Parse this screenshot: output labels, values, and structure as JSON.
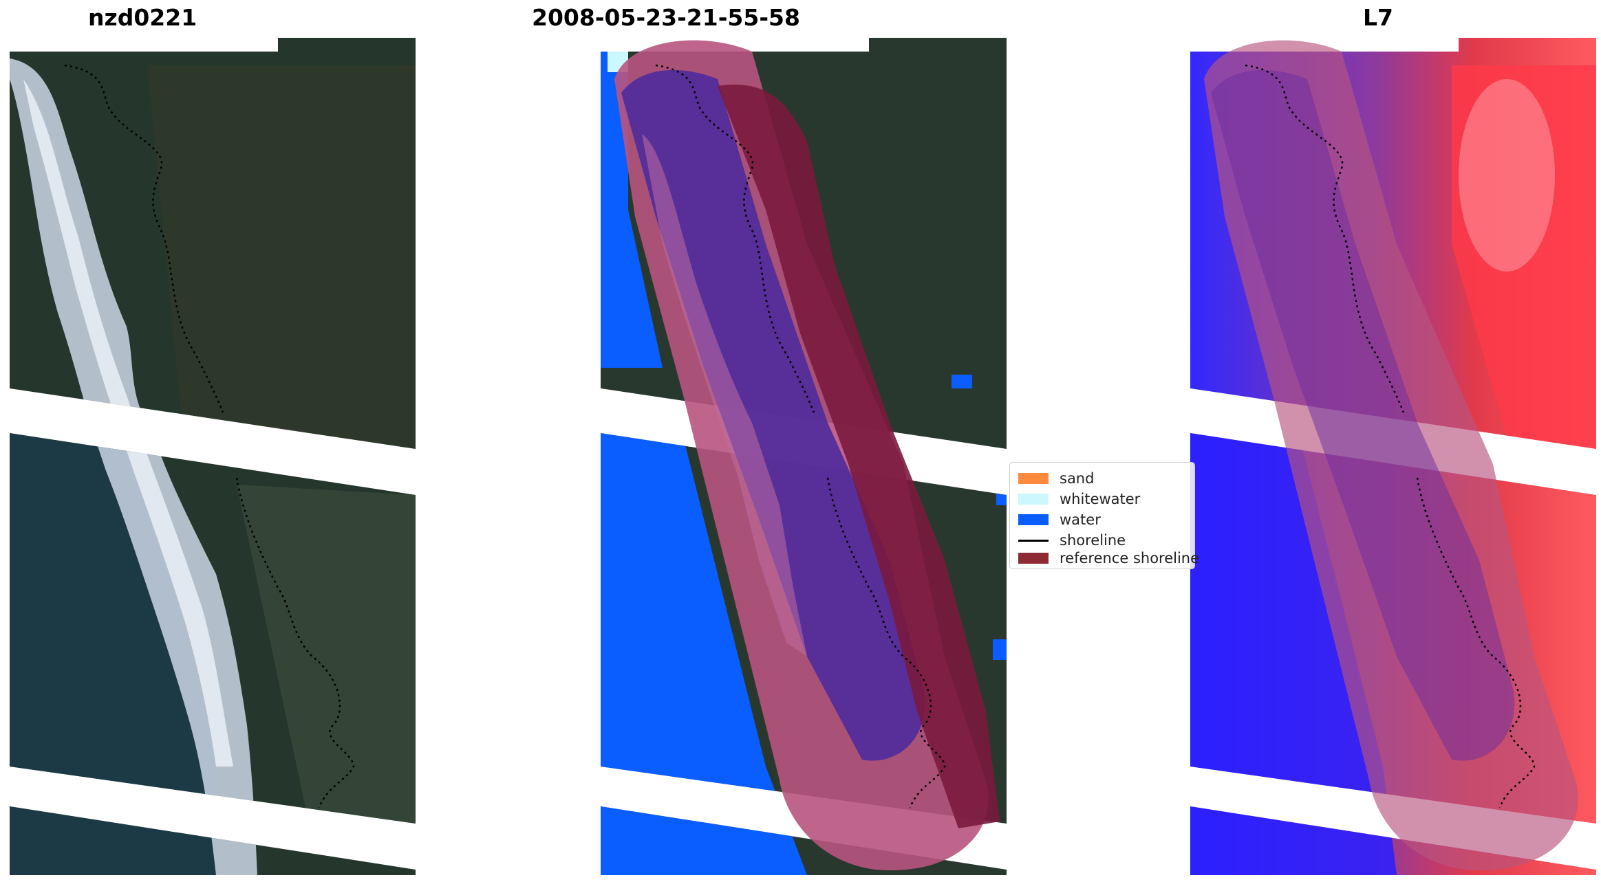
{
  "panels": [
    {
      "title": "nzd0221"
    },
    {
      "title": "2008-05-23-21-55-58"
    },
    {
      "title": "L7"
    }
  ],
  "legend": {
    "items": [
      {
        "label": "sand",
        "color": "#ff8a3d"
      },
      {
        "label": "whitewater",
        "color": "#ccf7ff"
      },
      {
        "label": "water",
        "color": "#0a5dff"
      },
      {
        "label": "shoreline",
        "color": "#000000"
      },
      {
        "label": "reference shoreline",
        "color": "#8e2a33"
      }
    ]
  },
  "colors": {
    "land_dark": "#2a3a30",
    "sea_dark": "#1f3b45",
    "surf_white": "#dfe6ee",
    "water_class": "#0a5dff",
    "buffer_pink": "#b8547f",
    "nir_red": "#e8323c",
    "nir_blue": "#2a1fff"
  }
}
